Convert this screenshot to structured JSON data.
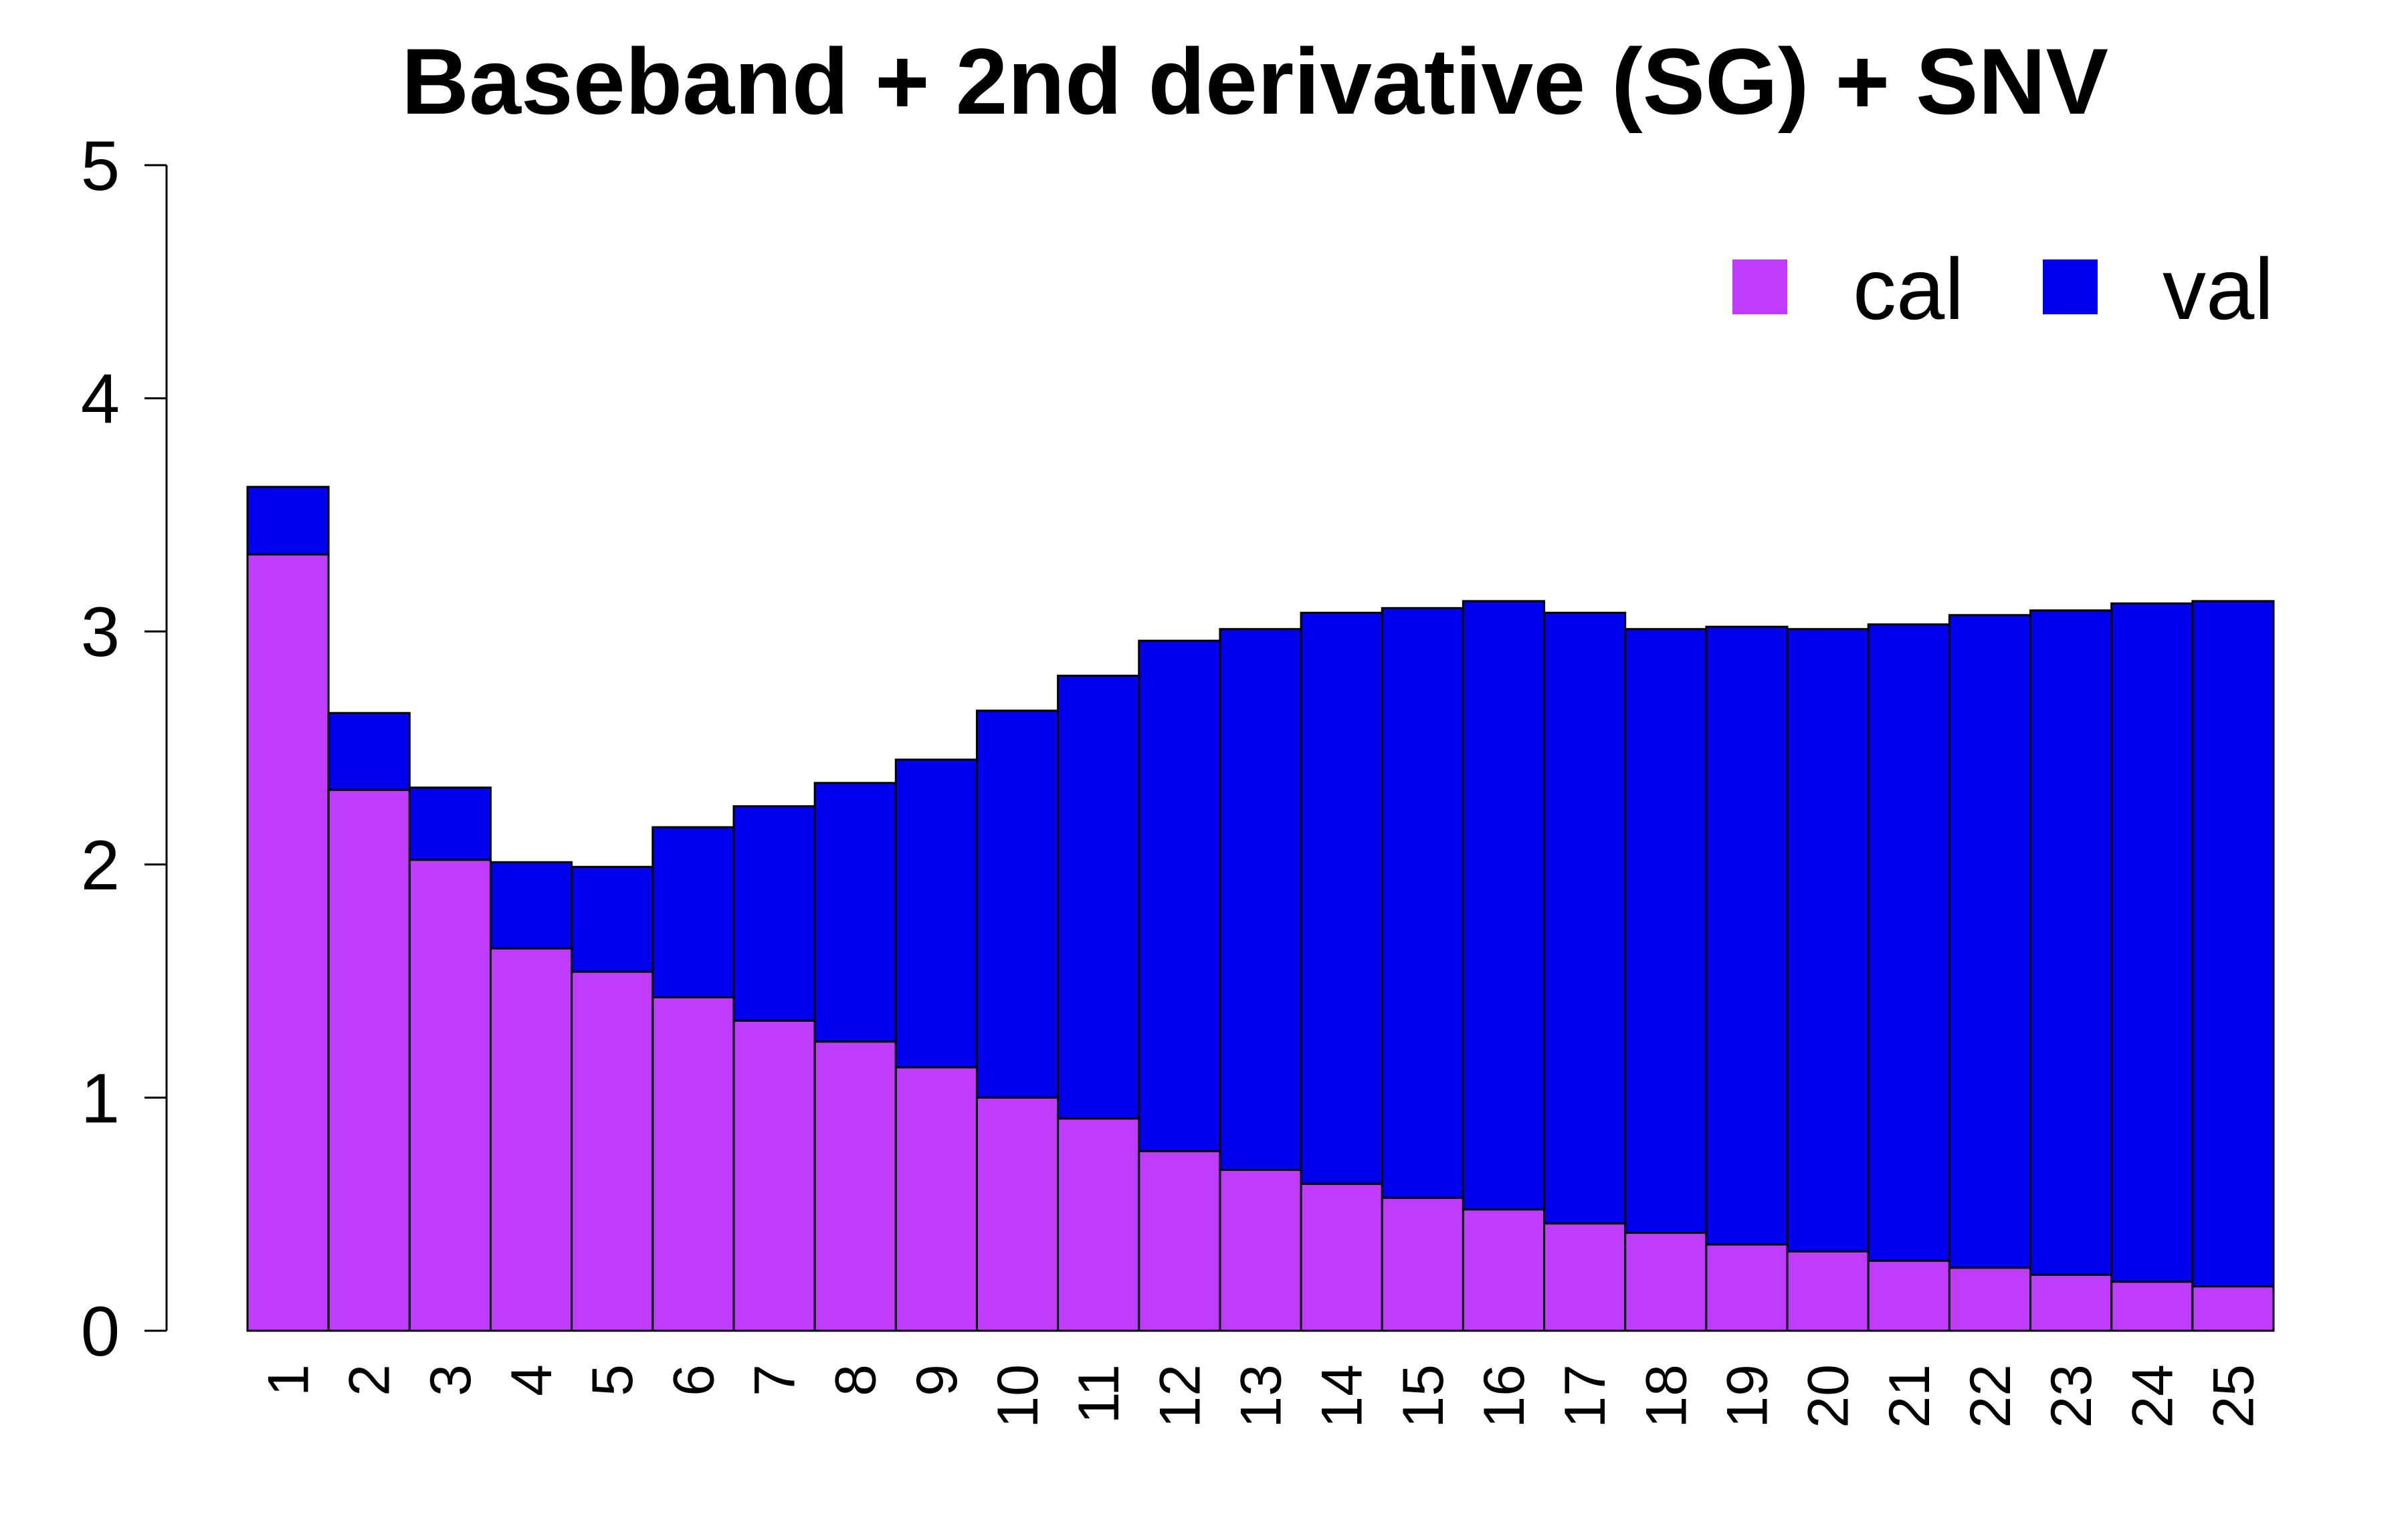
{
  "chart_data": {
    "type": "bar",
    "stacked": true,
    "title": "Baseband + 2nd derivative (SG) + SNV",
    "xlabel": "",
    "ylabel": "",
    "ylim": [
      0,
      5
    ],
    "yticks": [
      "0",
      "1",
      "2",
      "3",
      "4",
      "5"
    ],
    "grid": false,
    "legend_position": "top-right",
    "categories": [
      "1",
      "2",
      "3",
      "4",
      "5",
      "6",
      "7",
      "8",
      "9",
      "10",
      "11",
      "12",
      "13",
      "14",
      "15",
      "16",
      "17",
      "18",
      "19",
      "20",
      "21",
      "22",
      "23",
      "24",
      "25"
    ],
    "series": [
      {
        "name": "cal",
        "color": "#c03cfc",
        "values": [
          3.33,
          2.32,
          2.02,
          1.64,
          1.54,
          1.43,
          1.33,
          1.24,
          1.13,
          1.0,
          0.91,
          0.77,
          0.69,
          0.63,
          0.57,
          0.52,
          0.46,
          0.42,
          0.37,
          0.34,
          0.3,
          0.27,
          0.24,
          0.21,
          0.19
        ]
      },
      {
        "name": "val",
        "color": "#0000ee",
        "values": [
          0.29,
          0.33,
          0.31,
          0.37,
          0.45,
          0.73,
          0.92,
          1.11,
          1.32,
          1.66,
          1.9,
          2.19,
          2.32,
          2.45,
          2.53,
          2.61,
          2.62,
          2.59,
          2.65,
          2.67,
          2.73,
          2.8,
          2.85,
          2.91,
          2.94
        ]
      }
    ]
  }
}
